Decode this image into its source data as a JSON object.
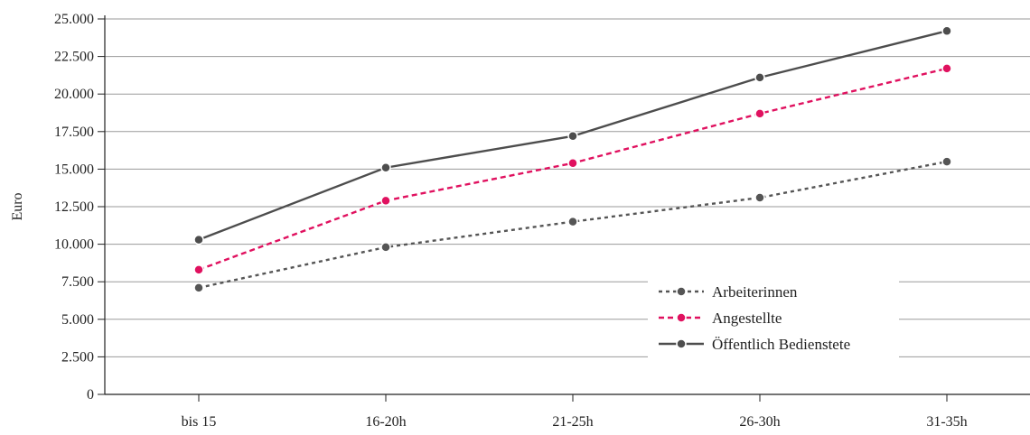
{
  "chart_data": {
    "type": "line",
    "title": "",
    "xlabel": "",
    "ylabel": "Euro",
    "ylim": [
      0,
      25000
    ],
    "yticks": [
      0,
      2500,
      5000,
      7500,
      10000,
      12500,
      15000,
      17500,
      20000,
      22500,
      25000
    ],
    "ytick_labels": [
      "0",
      "2.500",
      "5.000",
      "7.500",
      "10.000",
      "12.500",
      "15.000",
      "17.500",
      "20.000",
      "22.500",
      "25.000"
    ],
    "categories": [
      "bis 15",
      "16-20h",
      "21-25h",
      "26-30h",
      "31-35h"
    ],
    "grid": "horizontal",
    "legend_position": "bottom-right",
    "series": [
      {
        "name": "Arbeiterinnen",
        "values": [
          7100,
          9800,
          11500,
          13100,
          15500
        ],
        "color": "#555555",
        "style": "dotted"
      },
      {
        "name": "Angestellte",
        "values": [
          8300,
          12900,
          15400,
          18700,
          21700
        ],
        "color": "#e0115f",
        "style": "dashed"
      },
      {
        "name": "Öffentlich Bedienstete",
        "values": [
          10300,
          15100,
          17200,
          21100,
          24200
        ],
        "color": "#4d4d4d",
        "style": "solid"
      }
    ]
  }
}
